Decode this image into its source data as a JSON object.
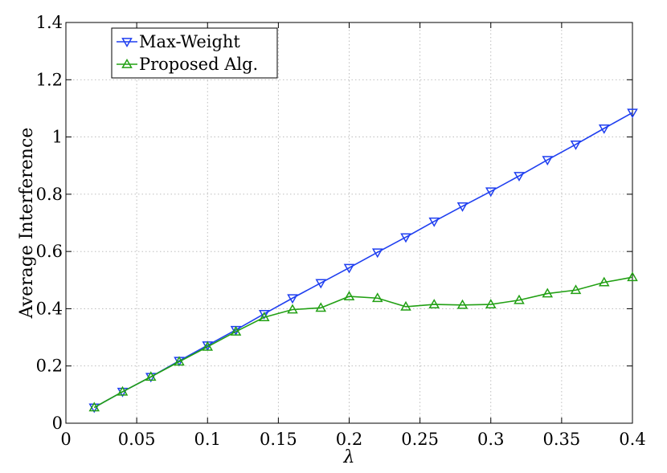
{
  "chart_data": {
    "type": "line",
    "title": "",
    "xlabel": "λ",
    "ylabel": "Average Interference",
    "xlim": [
      0,
      0.4
    ],
    "ylim": [
      0,
      1.4
    ],
    "xticks": [
      "0",
      "0.05",
      "0.1",
      "0.15",
      "0.2",
      "0.25",
      "0.3",
      "0.35",
      "0.4"
    ],
    "yticks": [
      "0",
      "0.2",
      "0.4",
      "0.6",
      "0.8",
      "1",
      "1.2",
      "1.4"
    ],
    "grid": true,
    "legend_position": "top-left",
    "x": [
      0.02,
      0.04,
      0.06,
      0.08,
      0.1,
      0.12,
      0.14,
      0.16,
      0.18,
      0.2,
      0.22,
      0.24,
      0.26,
      0.28,
      0.3,
      0.32,
      0.34,
      0.36,
      0.38,
      0.4
    ],
    "series": [
      {
        "name": "Max-Weight",
        "color": "#1f3ff0",
        "marker": "triangle-down",
        "values": [
          0.055,
          0.11,
          0.162,
          0.218,
          0.272,
          0.326,
          0.382,
          0.437,
          0.49,
          0.543,
          0.597,
          0.65,
          0.705,
          0.758,
          0.81,
          0.864,
          0.92,
          0.974,
          1.03,
          1.085
        ]
      },
      {
        "name": "Proposed Alg.",
        "color": "#22a014",
        "marker": "triangle-up",
        "values": [
          0.055,
          0.11,
          0.162,
          0.215,
          0.267,
          0.32,
          0.37,
          0.397,
          0.403,
          0.443,
          0.437,
          0.407,
          0.415,
          0.413,
          0.415,
          0.43,
          0.453,
          0.465,
          0.492,
          0.51
        ]
      }
    ]
  }
}
